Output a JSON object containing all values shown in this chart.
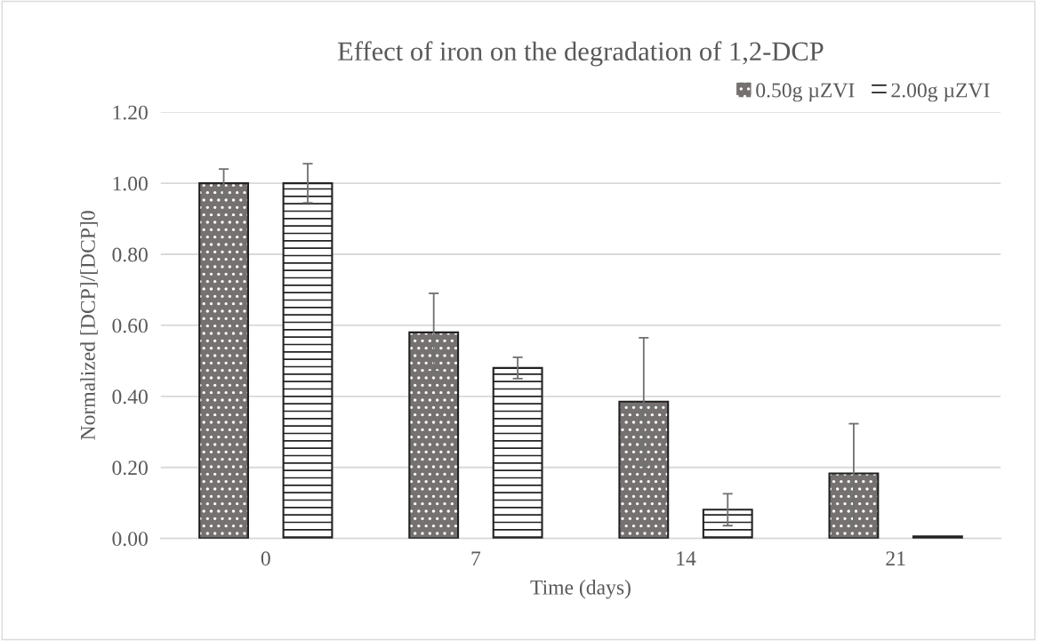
{
  "chart_data": {
    "type": "bar",
    "title": "Effect of iron on the degradation of 1,2-DCP",
    "xlabel": "Time (days)",
    "ylabel": "Normalized [DCP]/[DCP]0",
    "categories": [
      "0",
      "7",
      "14",
      "21"
    ],
    "series": [
      {
        "name": "0.50g µZVI",
        "color": "#767171",
        "values": [
          1.0,
          0.58,
          0.385,
          0.183
        ],
        "errors": [
          0.04,
          0.11,
          0.18,
          0.14
        ]
      },
      {
        "name": "2.00g µZVI",
        "color": "#ffffff",
        "values": [
          1.0,
          0.48,
          0.081,
          0.006
        ],
        "errors": [
          0.055,
          0.03,
          0.045,
          null
        ]
      }
    ],
    "ylim": [
      0,
      1.2
    ],
    "yticks": [
      {
        "value": 0,
        "label": "0.00"
      },
      {
        "value": 0.2,
        "label": "0.20"
      },
      {
        "value": 0.4,
        "label": "0.40"
      },
      {
        "value": 0.6,
        "label": "0.60"
      },
      {
        "value": 0.8,
        "label": "0.80"
      },
      {
        "value": 1.0,
        "label": "1.00"
      },
      {
        "value": 1.2,
        "label": "1.20"
      }
    ],
    "grid": "y",
    "legend": "top right"
  }
}
